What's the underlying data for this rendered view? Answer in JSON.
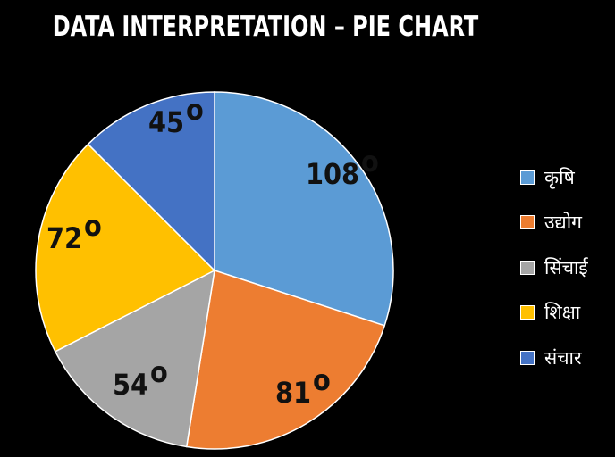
{
  "title": "DATA INTERPRETATION – PIE CHART",
  "chart_data": {
    "type": "pie",
    "title": "DATA INTERPRETATION – PIE CHART",
    "unit": "°",
    "slices": [
      {
        "label": "कृषि",
        "value": 108,
        "display": "108",
        "color": "#5B9BD5"
      },
      {
        "label": "उद्योग",
        "value": 81,
        "display": "81",
        "color": "#ED7D31"
      },
      {
        "label": "सिंचाई",
        "value": 54,
        "display": "54",
        "color": "#A5A5A5"
      },
      {
        "label": "शिक्षा",
        "value": 72,
        "display": "72",
        "color": "#FFC000"
      },
      {
        "label": "संचार",
        "value": 45,
        "display": "45",
        "color": "#4472C4"
      }
    ],
    "legend_position": "right",
    "start_angle": "12 o'clock, clockwise"
  }
}
